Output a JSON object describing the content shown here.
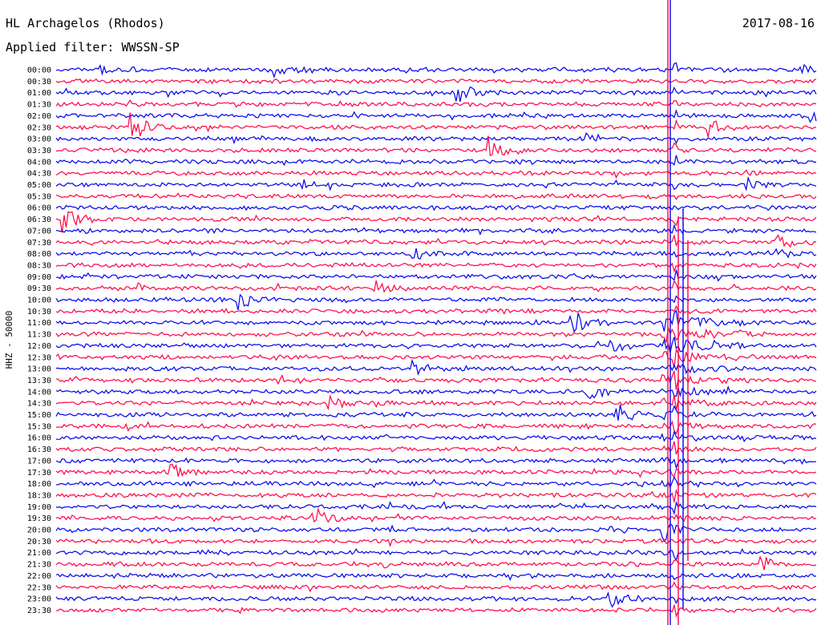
{
  "header": {
    "station": "HL Archagelos (Rhodos)",
    "date": "2017-08-16",
    "filter_label": "Applied filter: WWSSN-SP"
  },
  "chart_data": {
    "type": "line",
    "title": "HL Archagelos (Rhodos)",
    "ylabel": "HHZ - 50000",
    "xlabel": "",
    "trace_colors": [
      "#0000ee",
      "#ff0044"
    ],
    "row_labels": [
      "00:00",
      "00:30",
      "01:00",
      "01:30",
      "02:00",
      "02:30",
      "03:00",
      "03:30",
      "04:00",
      "04:30",
      "05:00",
      "05:30",
      "06:00",
      "06:30",
      "07:00",
      "07:30",
      "08:00",
      "08:30",
      "09:00",
      "09:30",
      "10:00",
      "10:30",
      "11:00",
      "11:30",
      "12:00",
      "12:30",
      "13:00",
      "13:30",
      "14:00",
      "14:30",
      "15:00",
      "15:30",
      "16:00",
      "16:30",
      "17:00",
      "17:30",
      "18:00",
      "18:30",
      "19:00",
      "19:30",
      "20:00",
      "20:30",
      "21:00",
      "21:30",
      "22:00",
      "22:30",
      "23:00",
      "23:30"
    ],
    "events": [
      {
        "row": 0,
        "pos": 0.06,
        "amp": 0.6
      },
      {
        "row": 0,
        "pos": 0.29,
        "amp": 0.9
      },
      {
        "row": 0,
        "pos": 0.97,
        "amp": 1.0
      },
      {
        "row": 2,
        "pos": 0.53,
        "amp": 1.4
      },
      {
        "row": 4,
        "pos": 0.99,
        "amp": 1.2
      },
      {
        "row": 5,
        "pos": 0.1,
        "amp": 2.0
      },
      {
        "row": 5,
        "pos": 0.86,
        "amp": 1.2
      },
      {
        "row": 7,
        "pos": 0.57,
        "amp": 2.0
      },
      {
        "row": 6,
        "pos": 0.7,
        "amp": 0.8
      },
      {
        "row": 10,
        "pos": 0.32,
        "amp": 0.7
      },
      {
        "row": 10,
        "pos": 0.91,
        "amp": 0.9
      },
      {
        "row": 13,
        "pos": 0.01,
        "amp": 1.8
      },
      {
        "row": 15,
        "pos": 0.95,
        "amp": 0.9
      },
      {
        "row": 16,
        "pos": 0.47,
        "amp": 0.8
      },
      {
        "row": 16,
        "pos": 0.95,
        "amp": 1.0
      },
      {
        "row": 19,
        "pos": 0.42,
        "amp": 0.8
      },
      {
        "row": 20,
        "pos": 0.24,
        "amp": 1.4
      },
      {
        "row": 22,
        "pos": 0.68,
        "amp": 2.2
      },
      {
        "row": 24,
        "pos": 0.73,
        "amp": 1.0
      },
      {
        "row": 26,
        "pos": 0.47,
        "amp": 0.9
      },
      {
        "row": 28,
        "pos": 0.7,
        "amp": 1.2
      },
      {
        "row": 29,
        "pos": 0.36,
        "amp": 0.9
      },
      {
        "row": 30,
        "pos": 0.74,
        "amp": 1.3
      },
      {
        "row": 35,
        "pos": 0.15,
        "amp": 1.5
      },
      {
        "row": 39,
        "pos": 0.34,
        "amp": 1.5
      },
      {
        "row": 40,
        "pos": 0.8,
        "amp": 1.2
      },
      {
        "row": 43,
        "pos": 0.93,
        "amp": 1.0
      },
      {
        "row": 46,
        "pos": 0.73,
        "amp": 1.0
      }
    ],
    "major_quake": {
      "row": 22,
      "pos": 0.8
    }
  }
}
